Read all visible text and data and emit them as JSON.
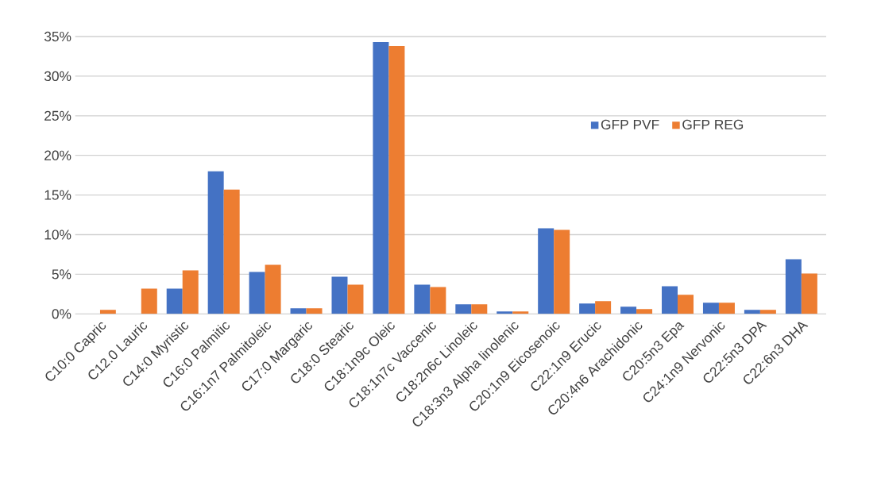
{
  "chart_data": {
    "type": "bar",
    "categories": [
      "C10:0 Capric",
      "C12.0 Lauric",
      "C14:0 Myristic",
      "C16:0 Palmitic",
      "C16:1n7 Palmitoleic",
      "C17:0 Margaric",
      "C18:0 Stearic",
      "C18:1n9c Oleic",
      "C18:1n7c Vaccenic",
      "C18:2n6c Linoleic",
      "C18:3n3 Alpha linolenic",
      "C20:1n9 Eicosenoic",
      "C22:1n9 Erucic",
      "C20:4n6 Arachidonic",
      "C20:5n3 Epa",
      "C24:1n9 Nervonic",
      "C22:5n3 DPA",
      "C22:6n3 DHA"
    ],
    "series": [
      {
        "name": "GFP PVF",
        "color": "#4472c4",
        "values": [
          0,
          0,
          3.2,
          18,
          5.3,
          0.7,
          4.7,
          34.3,
          3.7,
          1.2,
          0.3,
          10.8,
          1.3,
          0.9,
          3.5,
          1.4,
          0.5,
          6.9
        ]
      },
      {
        "name": "GFP REG",
        "color": "#ed7d31",
        "values": [
          0.5,
          3.2,
          5.5,
          15.7,
          6.2,
          0.7,
          3.7,
          33.8,
          3.4,
          1.2,
          0.3,
          10.6,
          1.6,
          0.6,
          2.4,
          1.4,
          0.5,
          5.1
        ]
      }
    ],
    "ylim": [
      0,
      35
    ],
    "yticks": [
      {
        "value": 0,
        "label": "0%"
      },
      {
        "value": 5,
        "label": "5%"
      },
      {
        "value": 10,
        "label": "10%"
      },
      {
        "value": 15,
        "label": "15%"
      },
      {
        "value": 20,
        "label": "20%"
      },
      {
        "value": 25,
        "label": "25%"
      },
      {
        "value": 30,
        "label": "30%"
      },
      {
        "value": 35,
        "label": "35%"
      }
    ],
    "grid": "y",
    "legend": "right"
  }
}
